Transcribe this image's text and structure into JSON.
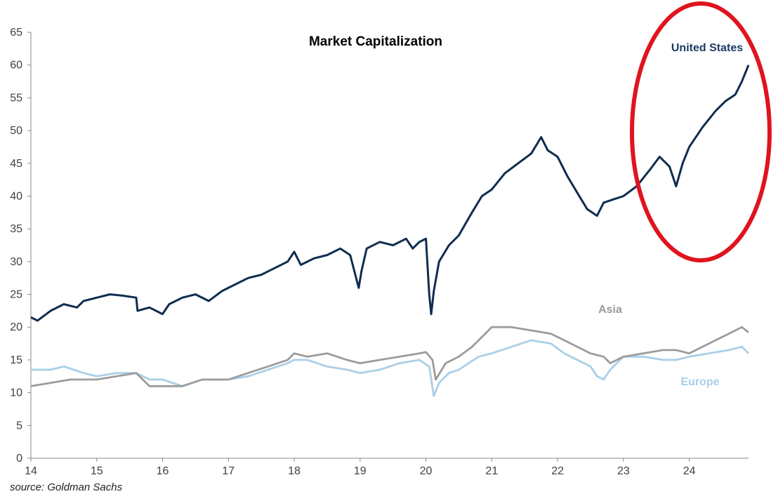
{
  "chart_data": {
    "type": "line",
    "title": "Market Capitalization",
    "xlabel": "",
    "ylabel": "",
    "xlim": [
      14,
      24.9
    ],
    "ylim": [
      0,
      65
    ],
    "x_ticks": [
      "14",
      "15",
      "16",
      "17",
      "18",
      "19",
      "20",
      "21",
      "22",
      "23",
      "24"
    ],
    "y_ticks": [
      "0",
      "5",
      "10",
      "15",
      "20",
      "25",
      "30",
      "35",
      "40",
      "45",
      "50",
      "55",
      "60",
      "65"
    ],
    "grid": false,
    "series": [
      {
        "name": "United States",
        "color": "#0f2d4f",
        "label_color": "#1f3b63",
        "x": [
          14.0,
          14.1,
          14.3,
          14.5,
          14.7,
          14.8,
          15.0,
          15.2,
          15.4,
          15.6,
          15.62,
          15.8,
          16.0,
          16.1,
          16.3,
          16.5,
          16.7,
          16.9,
          17.1,
          17.3,
          17.5,
          17.7,
          17.9,
          18.0,
          18.1,
          18.3,
          18.5,
          18.7,
          18.85,
          18.98,
          19.02,
          19.1,
          19.3,
          19.5,
          19.7,
          19.8,
          19.9,
          20.0,
          20.05,
          20.08,
          20.12,
          20.2,
          20.35,
          20.5,
          20.7,
          20.85,
          21.0,
          21.2,
          21.4,
          21.6,
          21.75,
          21.85,
          22.0,
          22.15,
          22.3,
          22.45,
          22.6,
          22.7,
          22.85,
          23.0,
          23.2,
          23.4,
          23.55,
          23.7,
          23.8,
          23.9,
          24.0,
          24.2,
          24.4,
          24.55,
          24.7,
          24.8,
          24.9
        ],
        "values": [
          21.5,
          21.0,
          22.5,
          23.5,
          23.0,
          24.0,
          24.5,
          25.0,
          24.8,
          24.5,
          22.5,
          23.0,
          22.0,
          23.5,
          24.5,
          25.0,
          24.0,
          25.5,
          26.5,
          27.5,
          28.0,
          29.0,
          30.0,
          31.5,
          29.5,
          30.5,
          31.0,
          32.0,
          31.0,
          26.0,
          28.5,
          32.0,
          33.0,
          32.5,
          33.5,
          32.0,
          33.0,
          33.5,
          25.0,
          22.0,
          25.5,
          30.0,
          32.5,
          34.0,
          37.5,
          40.0,
          41.0,
          43.5,
          45.0,
          46.5,
          49.0,
          47.0,
          46.0,
          43.0,
          40.5,
          38.0,
          37.0,
          39.0,
          39.5,
          40.0,
          41.5,
          44.0,
          46.0,
          44.5,
          41.5,
          45.0,
          47.5,
          50.5,
          53.0,
          54.5,
          55.5,
          57.5,
          60.0
        ]
      },
      {
        "name": "Asia",
        "color": "#9c9c9c",
        "label_color": "#9a9a9a",
        "x": [
          14.0,
          14.3,
          14.6,
          15.0,
          15.3,
          15.6,
          15.8,
          16.0,
          16.3,
          16.6,
          17.0,
          17.3,
          17.6,
          17.9,
          18.0,
          18.2,
          18.5,
          18.8,
          19.0,
          19.3,
          19.6,
          19.9,
          20.0,
          20.1,
          20.15,
          20.3,
          20.5,
          20.7,
          20.9,
          21.0,
          21.3,
          21.6,
          21.9,
          22.1,
          22.3,
          22.5,
          22.7,
          22.8,
          23.0,
          23.3,
          23.6,
          23.8,
          24.0,
          24.3,
          24.5,
          24.6,
          24.7,
          24.8,
          24.9
        ],
        "values": [
          11.0,
          11.5,
          12.0,
          12.0,
          12.5,
          13.0,
          11.0,
          11.0,
          11.0,
          12.0,
          12.0,
          13.0,
          14.0,
          15.0,
          16.0,
          15.5,
          16.0,
          15.0,
          14.5,
          15.0,
          15.5,
          16.0,
          16.2,
          15.0,
          12.0,
          14.5,
          15.5,
          17.0,
          19.0,
          20.0,
          20.0,
          19.5,
          19.0,
          18.0,
          17.0,
          16.0,
          15.5,
          14.5,
          15.5,
          16.0,
          16.5,
          16.5,
          16.0,
          17.5,
          18.5,
          19.0,
          19.5,
          20.0,
          19.2
        ]
      },
      {
        "name": "Europe",
        "color": "#a9cfe8",
        "label_color": "#a8cfe9",
        "x": [
          14.0,
          14.3,
          14.5,
          14.8,
          15.0,
          15.3,
          15.6,
          15.8,
          16.0,
          16.3,
          16.6,
          17.0,
          17.3,
          17.6,
          17.9,
          18.0,
          18.2,
          18.5,
          18.8,
          19.0,
          19.3,
          19.6,
          19.9,
          20.05,
          20.12,
          20.2,
          20.35,
          20.5,
          20.8,
          21.0,
          21.3,
          21.6,
          21.9,
          22.1,
          22.3,
          22.5,
          22.6,
          22.7,
          22.8,
          23.0,
          23.3,
          23.6,
          23.8,
          24.0,
          24.3,
          24.6,
          24.8,
          24.9
        ],
        "values": [
          13.5,
          13.5,
          14.0,
          13.0,
          12.5,
          13.0,
          13.0,
          12.0,
          12.0,
          11.0,
          12.0,
          12.0,
          12.5,
          13.5,
          14.5,
          15.0,
          15.0,
          14.0,
          13.5,
          13.0,
          13.5,
          14.5,
          15.0,
          14.0,
          9.5,
          11.5,
          13.0,
          13.5,
          15.5,
          16.0,
          17.0,
          18.0,
          17.5,
          16.0,
          15.0,
          14.0,
          12.5,
          12.0,
          13.5,
          15.5,
          15.5,
          15.0,
          15.0,
          15.5,
          16.0,
          16.5,
          17.0,
          16.0
        ]
      }
    ],
    "annotations": [
      {
        "type": "ellipse-highlight",
        "color": "#e0141e",
        "target": "United States"
      }
    ]
  },
  "source_text": "source: Goldman Sachs"
}
